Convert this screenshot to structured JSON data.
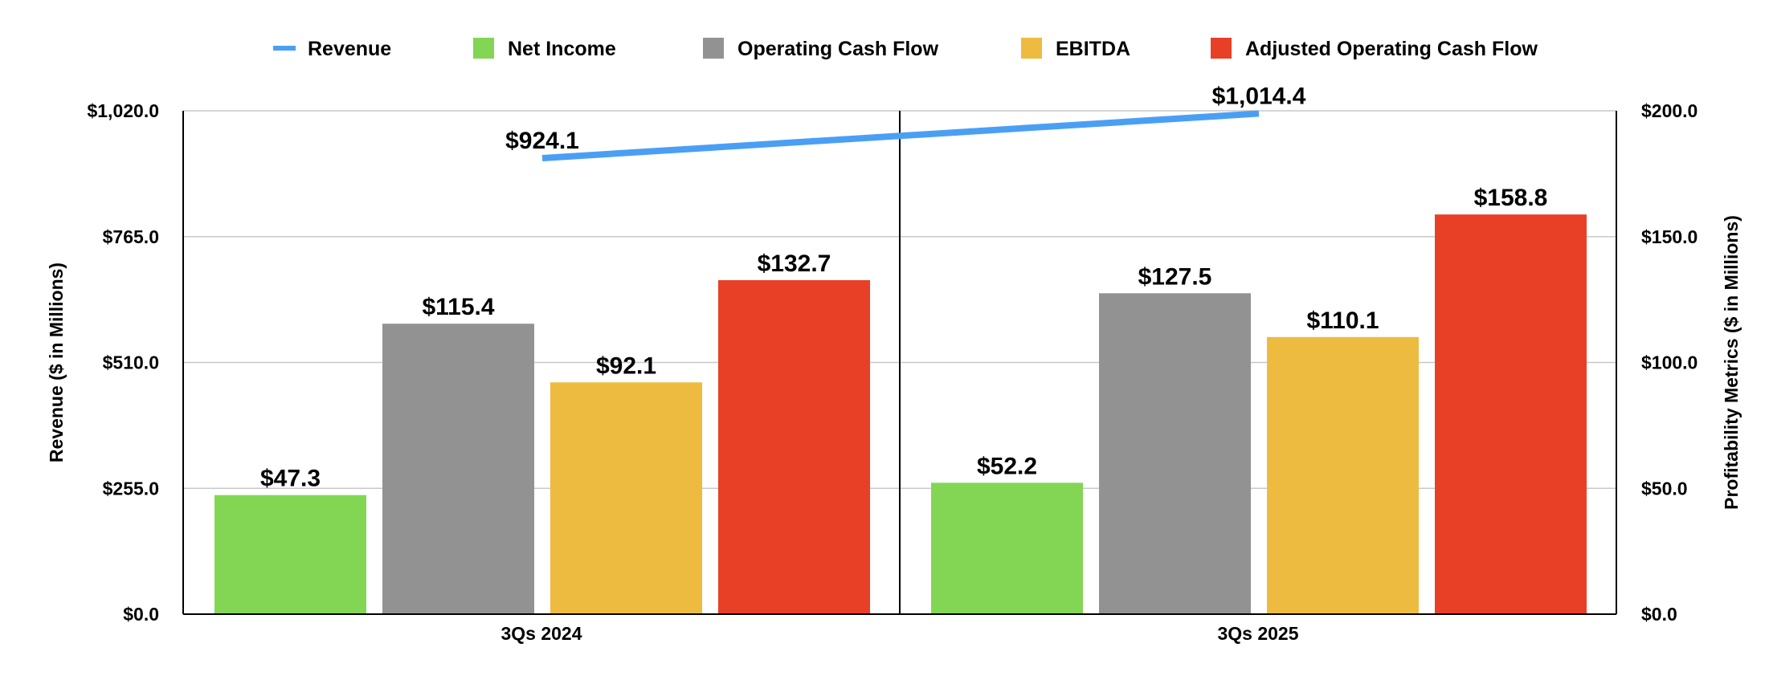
{
  "chart_data": {
    "type": "bar",
    "categories": [
      "3Qs 2024",
      "3Qs 2025"
    ],
    "legend_position": "top",
    "grid": true,
    "left_axis": {
      "title": "Revenue ($ in Millions)",
      "range": [
        0,
        1020
      ],
      "ticks": [
        0,
        255,
        510,
        765,
        1020
      ],
      "tick_labels": [
        "$0.0",
        "$255.0",
        "$510.0",
        "$765.0",
        "$1,020.0"
      ]
    },
    "right_axis": {
      "title": "Profitability Metrics ($ in Millions)",
      "range": [
        0,
        200
      ],
      "ticks": [
        0,
        50,
        100,
        150,
        200
      ],
      "tick_labels": [
        "$0.0",
        "$50.0",
        "$100.0",
        "$150.0",
        "$200.0"
      ]
    },
    "line_series": {
      "name": "Revenue",
      "type": "line",
      "axis": "left",
      "color": "#4A9FF5",
      "values": [
        924.1,
        1014.4
      ],
      "labels": [
        "$924.1",
        "$1,014.4"
      ]
    },
    "series": [
      {
        "name": "Net Income",
        "axis": "right",
        "color": "#82D653",
        "values": [
          47.3,
          52.2
        ],
        "labels": [
          "$47.3",
          "$52.2"
        ]
      },
      {
        "name": "Operating Cash Flow",
        "axis": "right",
        "color": "#929292",
        "values": [
          115.4,
          127.5
        ],
        "labels": [
          "$115.4",
          "$127.5"
        ]
      },
      {
        "name": "EBITDA",
        "axis": "right",
        "color": "#EEBB41",
        "values": [
          92.1,
          110.1
        ],
        "labels": [
          "$92.1",
          "$110.1"
        ]
      },
      {
        "name": "Adjusted Operating Cash Flow",
        "axis": "right",
        "color": "#E84027",
        "values": [
          132.7,
          158.8
        ],
        "labels": [
          "$132.7",
          "$158.8"
        ]
      }
    ]
  }
}
